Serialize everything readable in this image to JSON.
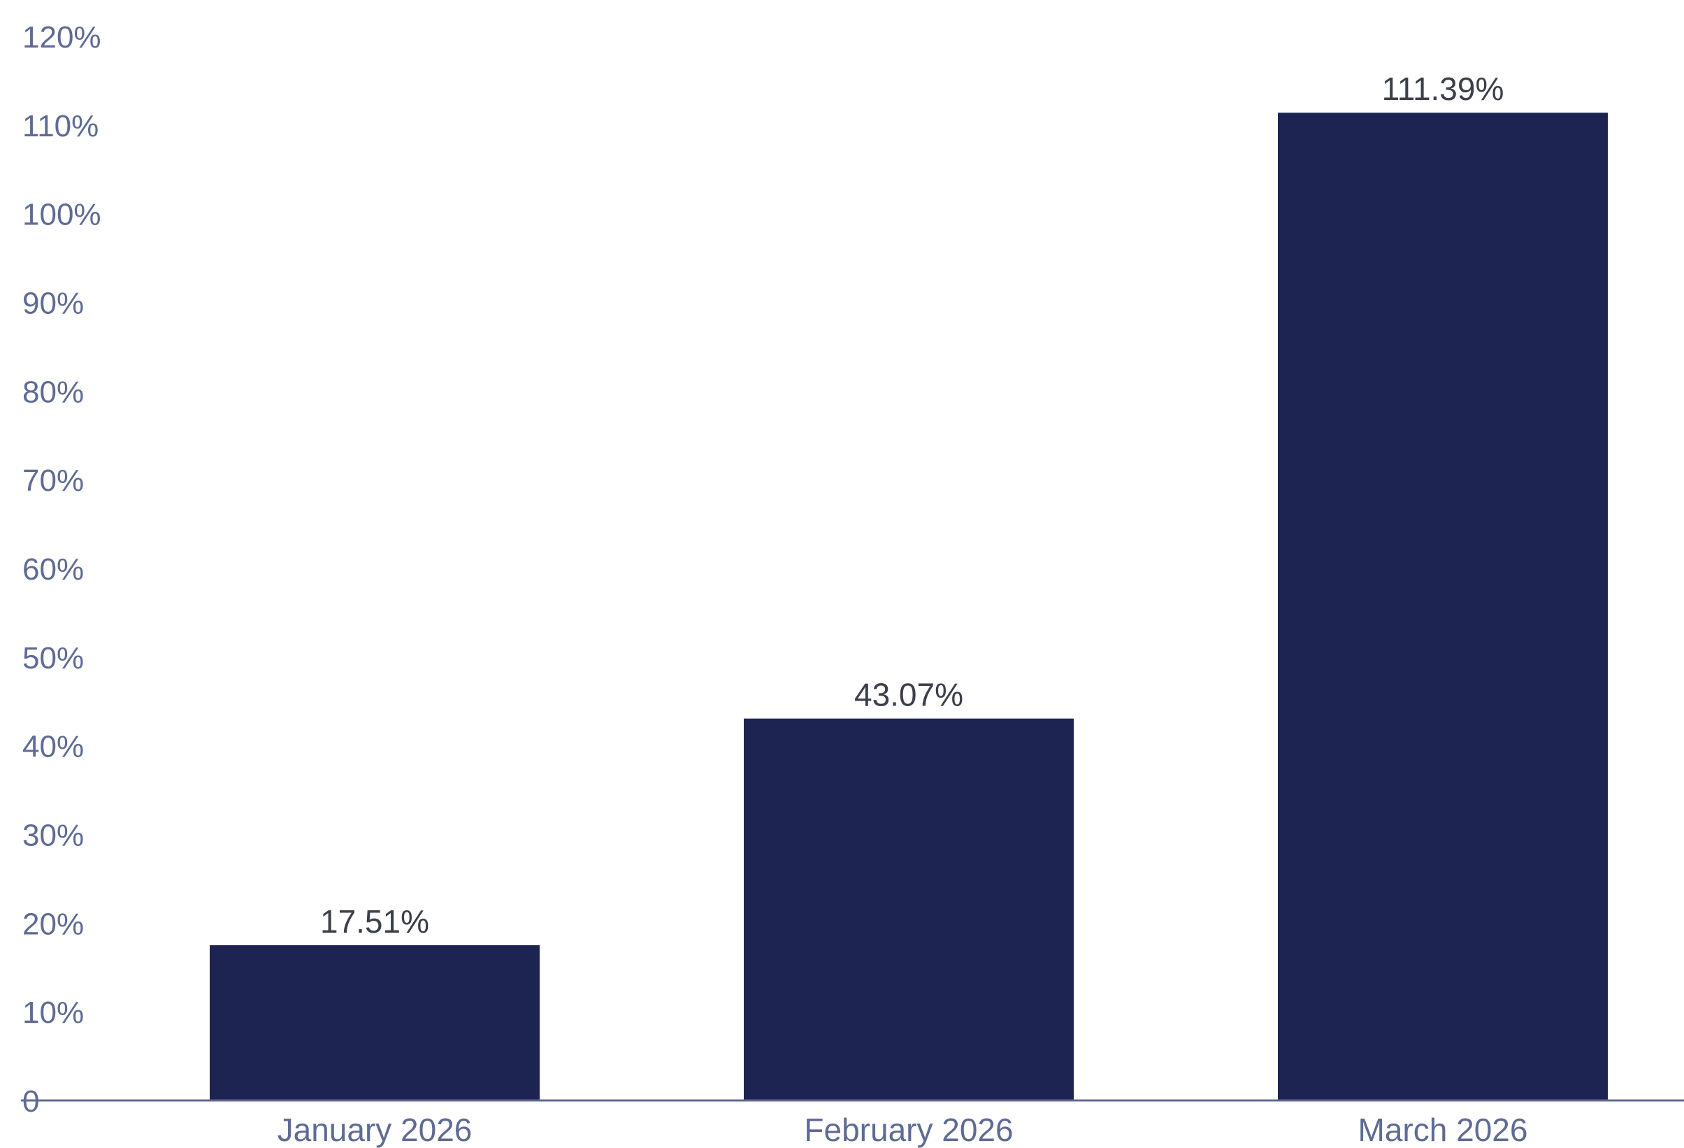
{
  "chart_data": {
    "type": "bar",
    "categories": [
      "January 2026",
      "February 2026",
      "March 2026"
    ],
    "values": [
      17.51,
      43.07,
      111.39
    ],
    "data_labels": [
      "17.51%",
      "43.07%",
      "111.39%"
    ],
    "y_ticks": [
      0,
      10,
      20,
      30,
      40,
      50,
      60,
      70,
      80,
      90,
      100,
      110,
      120
    ],
    "y_tick_labels": [
      "0",
      "10%",
      "20%",
      "30%",
      "40%",
      "50%",
      "60%",
      "70%",
      "80%",
      "90%",
      "100%",
      "110%",
      "120%"
    ],
    "ylim": [
      0,
      120
    ],
    "grid": false,
    "legend": "none",
    "title": "",
    "xlabel": "",
    "ylabel": "",
    "colors": {
      "bar": "#1e2452",
      "axis_line": "#5f6b94",
      "tick_text": "#5f6b94",
      "data_label_text": "#3b3f4a",
      "background": "#ffffff"
    }
  }
}
